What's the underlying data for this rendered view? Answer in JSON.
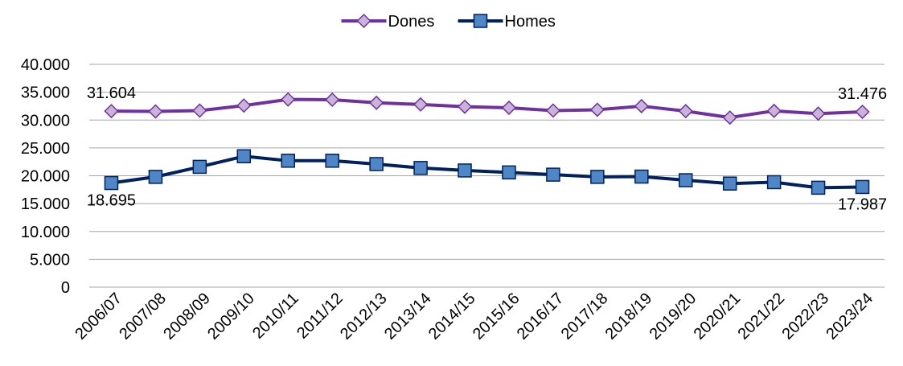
{
  "chart_data": {
    "type": "line",
    "categories": [
      "2006/07",
      "2007/08",
      "2008/09",
      "2009/10",
      "2010/11",
      "2011/12",
      "2012/13",
      "2013/14",
      "2014/15",
      "2015/16",
      "2016/17",
      "2017/18",
      "2018/19",
      "2019/20",
      "2020/21",
      "2021/22",
      "2022/23",
      "2023/24"
    ],
    "series": [
      {
        "name": "Dones",
        "color": "#7030A0",
        "marker_fill": "#C9B3D8",
        "marker": "diamond",
        "values": [
          31604,
          31550,
          31700,
          32600,
          33700,
          33650,
          33100,
          32800,
          32400,
          32200,
          31700,
          31850,
          32500,
          31600,
          30450,
          31650,
          31150,
          31476
        ]
      },
      {
        "name": "Homes",
        "color": "#002060",
        "marker_fill": "#4F86C6",
        "marker": "square",
        "values": [
          18695,
          19800,
          21600,
          23500,
          22700,
          22700,
          22100,
          21400,
          20950,
          20600,
          20200,
          19800,
          19850,
          19200,
          18600,
          18850,
          17850,
          17987
        ]
      }
    ],
    "data_labels": [
      {
        "series": 0,
        "index": 0,
        "text": "31.604",
        "position": "above"
      },
      {
        "series": 0,
        "index": 17,
        "text": "31.476",
        "position": "above"
      },
      {
        "series": 1,
        "index": 0,
        "text": "18.695",
        "position": "below"
      },
      {
        "series": 1,
        "index": 17,
        "text": "17.987",
        "position": "below"
      }
    ],
    "yticks": [
      {
        "value": 0,
        "label": "0"
      },
      {
        "value": 5000,
        "label": "5.000"
      },
      {
        "value": 10000,
        "label": "10.000"
      },
      {
        "value": 15000,
        "label": "15.000"
      },
      {
        "value": 20000,
        "label": "20.000"
      },
      {
        "value": 25000,
        "label": "25.000"
      },
      {
        "value": 30000,
        "label": "30.000"
      },
      {
        "value": 35000,
        "label": "35.000"
      },
      {
        "value": 40000,
        "label": "40.000"
      }
    ],
    "ylim": [
      0,
      40000
    ],
    "grid": true,
    "legend_position": "top-center",
    "title": "",
    "xlabel": "",
    "ylabel": ""
  }
}
